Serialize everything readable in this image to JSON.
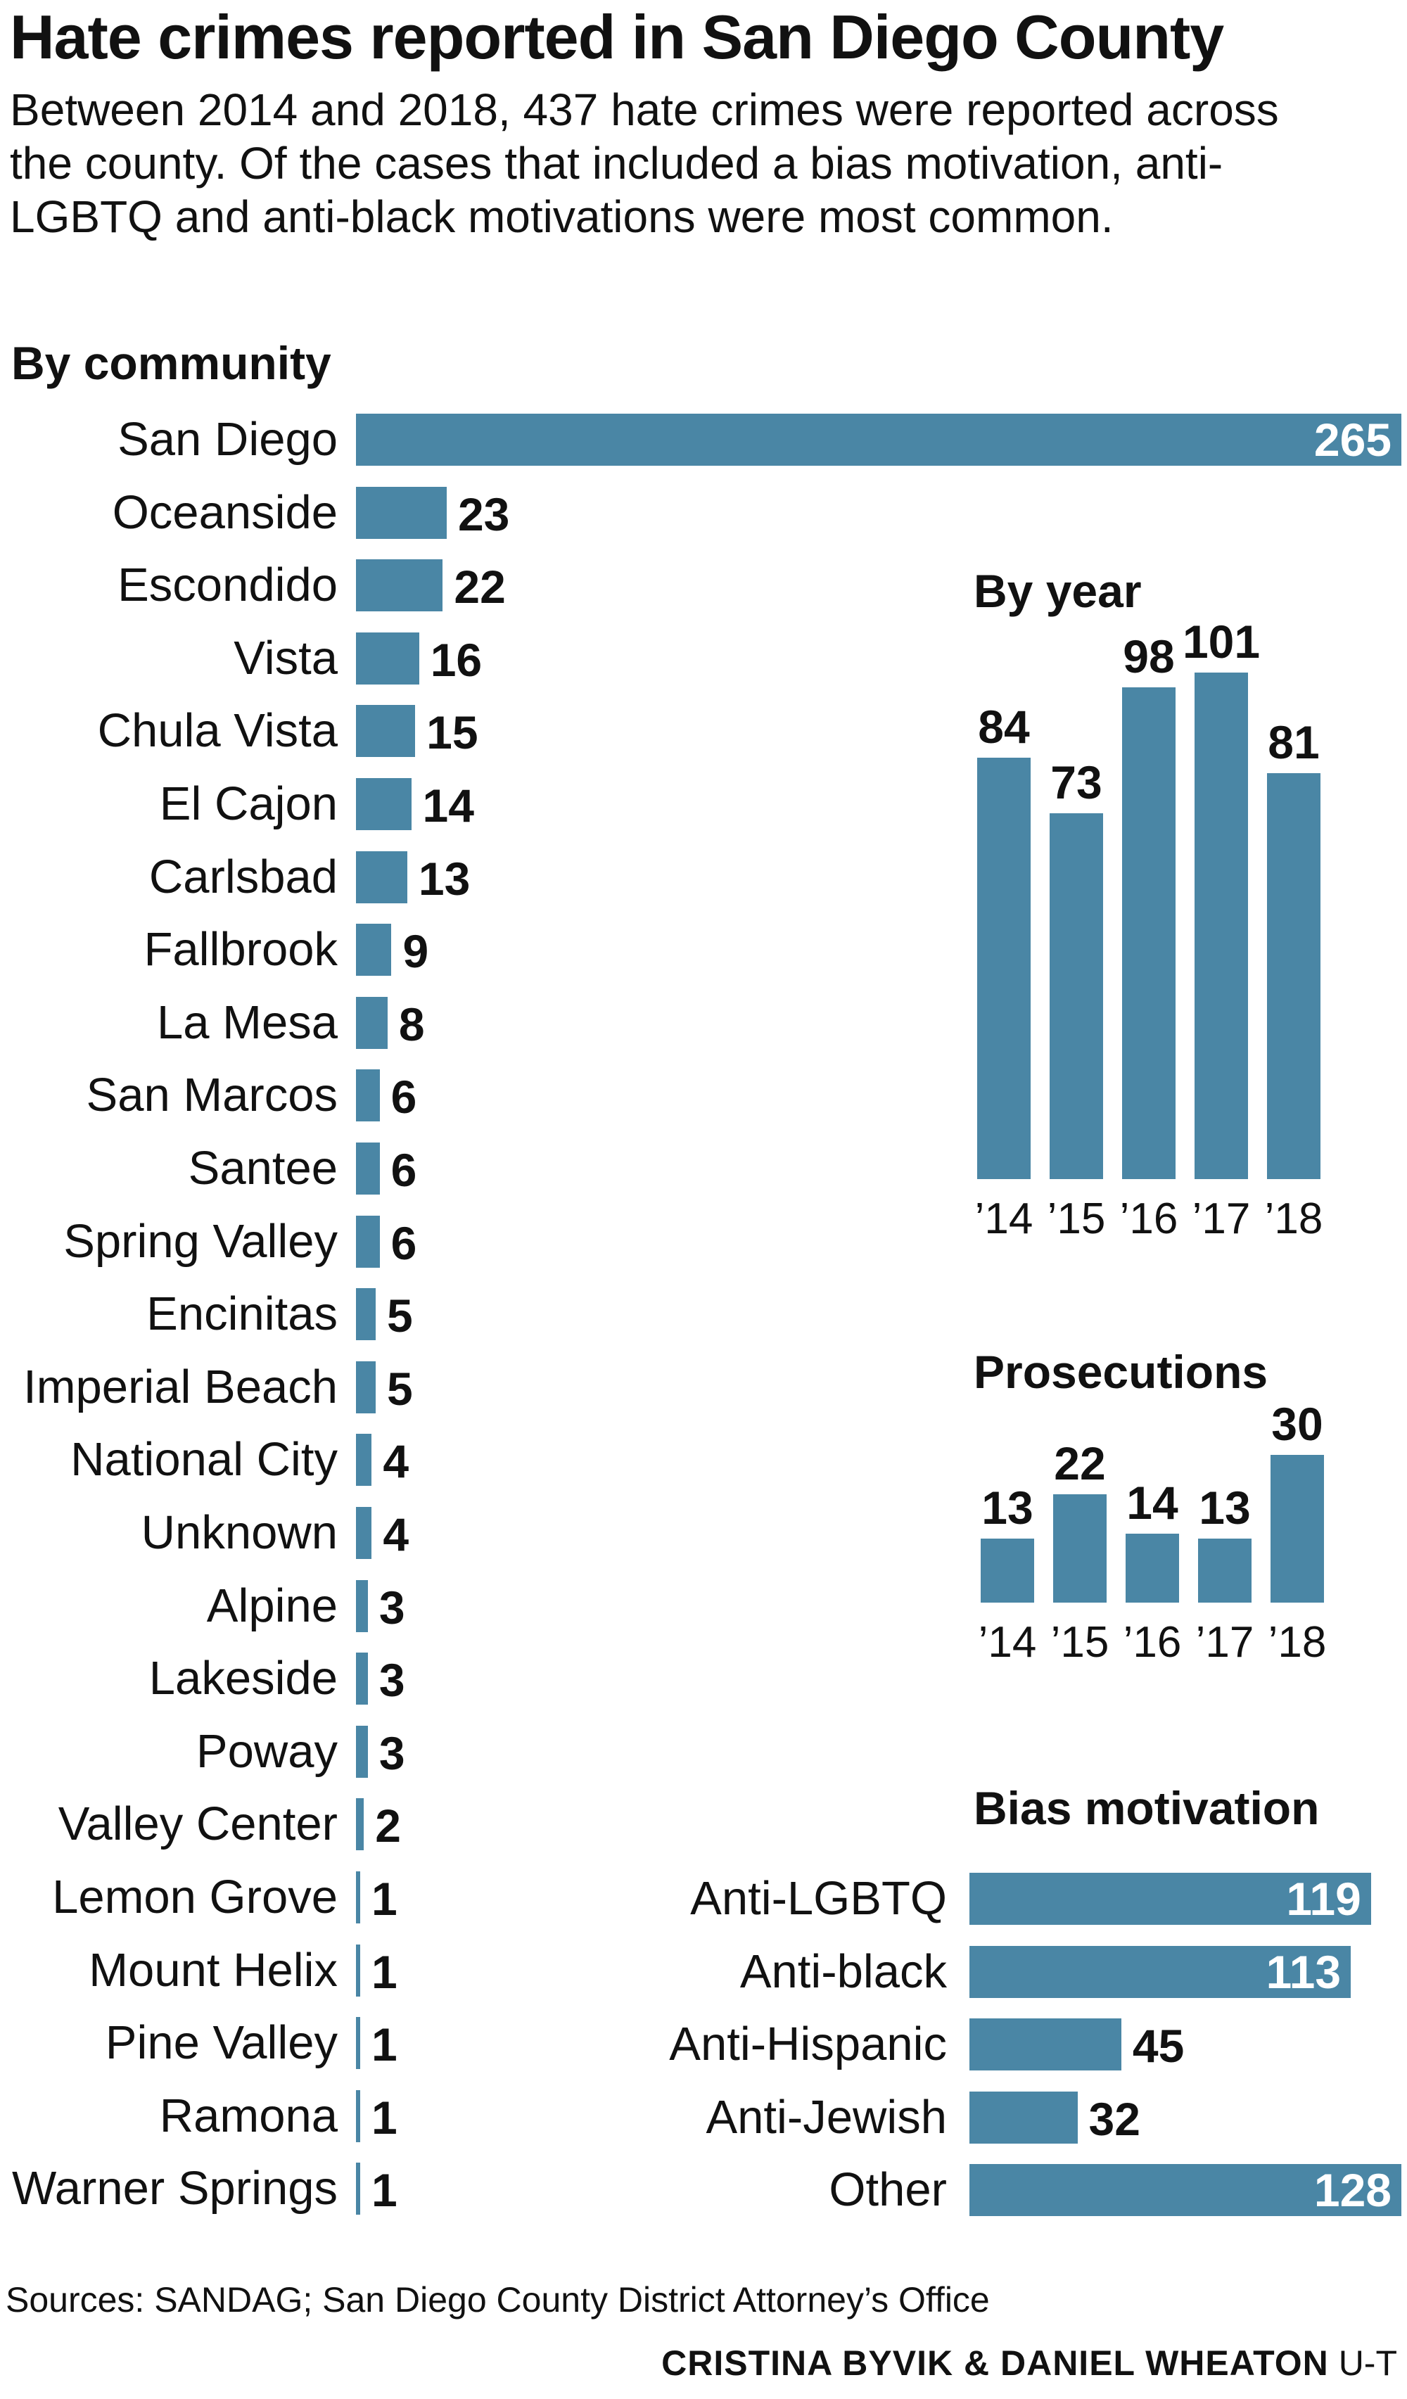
{
  "title": "Hate crimes reported in San Diego County",
  "subtitle": "Between 2014 and 2018, 437 hate crimes were reported across the county. Of the cases that included a bias motivation, anti-LGBTQ and anti-black motivations were most common.",
  "sources": "Sources: SANDAG; San Diego County District Attorney’s Office",
  "credit_names": "CRISTINA BYVIK & DANIEL WHEATON",
  "credit_org": "U-T",
  "colors": {
    "bar": "#4a86a5",
    "text": "#111111",
    "inside_label": "#ffffff"
  },
  "chart_data": [
    {
      "type": "bar",
      "orientation": "horizontal",
      "title": "By community",
      "categories": [
        "San Diego",
        "Oceanside",
        "Escondido",
        "Vista",
        "Chula Vista",
        "El Cajon",
        "Carlsbad",
        "Fallbrook",
        "La Mesa",
        "San Marcos",
        "Santee",
        "Spring Valley",
        "Encinitas",
        "Imperial Beach",
        "National City",
        "Unknown",
        "Alpine",
        "Lakeside",
        "Poway",
        "Valley Center",
        "Lemon Grove",
        "Mount Helix",
        "Pine Valley",
        "Ramona",
        "Warner Springs"
      ],
      "values": [
        265,
        23,
        22,
        16,
        15,
        14,
        13,
        9,
        8,
        6,
        6,
        6,
        5,
        5,
        4,
        4,
        3,
        3,
        3,
        2,
        1,
        1,
        1,
        1,
        1
      ]
    },
    {
      "type": "bar",
      "orientation": "vertical",
      "title": "By year",
      "categories": [
        "’14",
        "’15",
        "’16",
        "’17",
        "’18"
      ],
      "values": [
        84,
        73,
        98,
        101,
        81
      ]
    },
    {
      "type": "bar",
      "orientation": "vertical",
      "title": "Prosecutions",
      "categories": [
        "’14",
        "’15",
        "’16",
        "’17",
        "’18"
      ],
      "values": [
        13,
        22,
        14,
        13,
        30
      ]
    },
    {
      "type": "bar",
      "orientation": "horizontal",
      "title": "Bias motivation",
      "categories": [
        "Anti-LGBTQ",
        "Anti-black",
        "Anti-Hispanic",
        "Anti-Jewish",
        "Other"
      ],
      "values": [
        119,
        113,
        45,
        32,
        128
      ]
    }
  ]
}
